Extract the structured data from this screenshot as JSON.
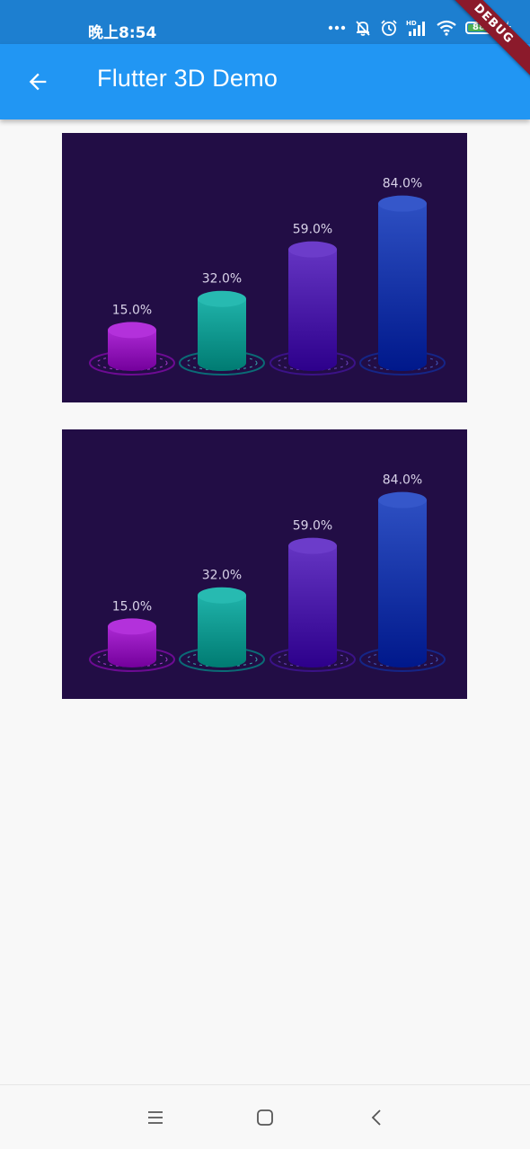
{
  "status_bar": {
    "time": "晚上8:54",
    "battery_level": "88",
    "battery_fraction": 0.88,
    "icons": [
      "more-dots-icon",
      "bell-off-icon",
      "alarm-icon",
      "hd-signal-icon",
      "wifi-icon",
      "battery-icon",
      "charging-icon"
    ]
  },
  "app_bar": {
    "title": "Flutter 3D Demo",
    "back_icon": "arrow-back-icon"
  },
  "debug_banner": {
    "label": "DEBUG"
  },
  "colors": {
    "status_bar": "#1d7fd0",
    "app_bar": "#2196f3",
    "chart_background": "#220d45",
    "page_background": "#f8f8f8"
  },
  "chart_data": [
    {
      "type": "bar",
      "style": "3d-cylinder",
      "categories": [
        "",
        "",
        "",
        ""
      ],
      "values": [
        15.0,
        32.0,
        59.0,
        84.0
      ],
      "labels": [
        "15.0%",
        "32.0%",
        "59.0%",
        "84.0%"
      ],
      "colors": [
        "#a11fc9",
        "#15a89f",
        "#5a2ab8",
        "#2345b8"
      ],
      "ylim": [
        0,
        100
      ],
      "grid": false,
      "legend": "none"
    },
    {
      "type": "bar",
      "style": "3d-cylinder",
      "categories": [
        "",
        "",
        "",
        ""
      ],
      "values": [
        15.0,
        32.0,
        59.0,
        84.0
      ],
      "labels": [
        "15.0%",
        "32.0%",
        "59.0%",
        "84.0%"
      ],
      "colors": [
        "#a11fc9",
        "#15a89f",
        "#5a2ab8",
        "#2345b8"
      ],
      "ylim": [
        0,
        100
      ],
      "grid": false,
      "legend": "none"
    }
  ],
  "nav_bar": {
    "icons": [
      "menu-icon",
      "home-square-icon",
      "back-chevron-icon"
    ]
  }
}
